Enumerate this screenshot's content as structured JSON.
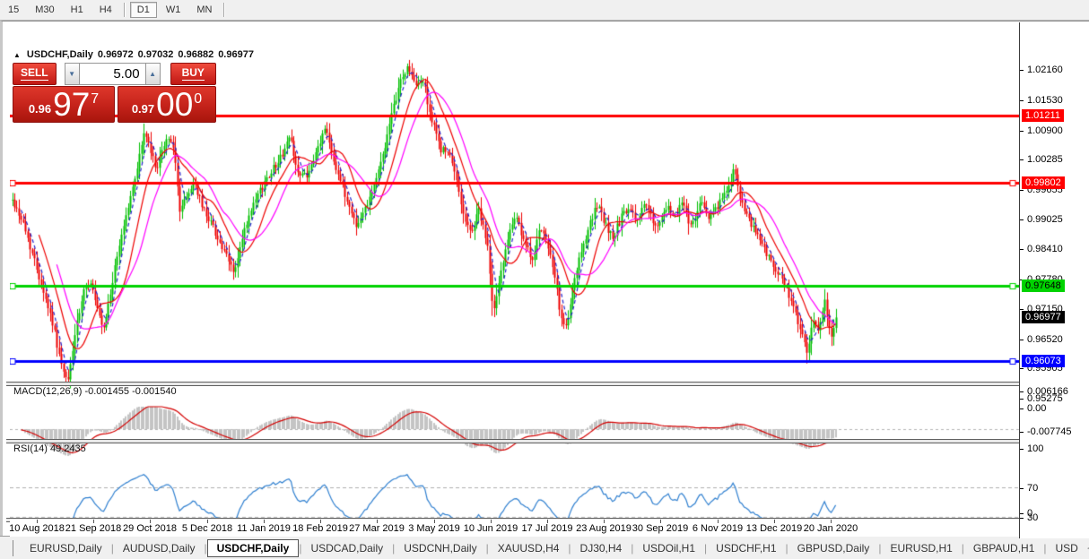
{
  "toolbar": {
    "timeframes": [
      {
        "label": "15",
        "active": false
      },
      {
        "label": "M30",
        "active": false
      },
      {
        "label": "H1",
        "active": false
      },
      {
        "label": "H4",
        "active": false,
        "sep_after": true
      },
      {
        "label": "D1",
        "active": true
      },
      {
        "label": "W1",
        "active": false
      },
      {
        "label": "MN",
        "active": false,
        "sep_after": true
      }
    ]
  },
  "chart_header": {
    "collapse_icon": "▲",
    "symbol": "USDCHF,Daily",
    "open": "0.96972",
    "high": "0.97032",
    "low": "0.96882",
    "close": "0.96977"
  },
  "trade_panel": {
    "sell_label": "SELL",
    "buy_label": "BUY",
    "volume": "5.00",
    "spin_down_icon": "▼",
    "spin_up_icon": "▲",
    "sell_price_small": "0.96",
    "sell_price_big": "97",
    "sell_price_sup": "7",
    "buy_price_small": "0.97",
    "buy_price_big": "00",
    "buy_price_sup": "0"
  },
  "macd_panel": {
    "label": "MACD(12,26,9) -0.001455 -0.001540",
    "axis": [
      "0.006166",
      "0.00",
      "-0.007745"
    ]
  },
  "rsi_panel": {
    "label": "RSI(14) 49.2435",
    "axis": [
      "100",
      "70",
      "30",
      "0"
    ]
  },
  "tab_bar": {
    "tabs": [
      {
        "label": "EURUSD,Daily",
        "active": false
      },
      {
        "label": "AUDUSD,Daily",
        "active": false
      },
      {
        "label": "USDCHF,Daily",
        "active": true
      },
      {
        "label": "USDCAD,Daily",
        "active": false
      },
      {
        "label": "USDCNH,Daily",
        "active": false
      },
      {
        "label": "XAUUSD,H4",
        "active": false
      },
      {
        "label": "DJ30,H4",
        "active": false
      },
      {
        "label": "USDOil,H1",
        "active": false
      },
      {
        "label": "USDCHF,H1",
        "active": false
      },
      {
        "label": "GBPUSD,Daily",
        "active": false
      },
      {
        "label": "EURUSD,H1",
        "active": false
      },
      {
        "label": "GBPAUD,H1",
        "active": false
      },
      {
        "label": "USD",
        "active": false
      }
    ],
    "scroll_left_icon": "◂",
    "scroll_right_icon": "▸"
  },
  "chart_data": {
    "type": "candlestick",
    "symbol": "USDCHF",
    "timeframe": "Daily",
    "quote": {
      "open": 0.96972,
      "high": 0.97032,
      "low": 0.96882,
      "close": 0.96977
    },
    "current_price": 0.96977,
    "colors": {
      "candle_up": "#00c000",
      "candle_down": "#ee0000",
      "ma_fast": "#2222cc",
      "ma_mid": "#ee0000",
      "ma_slow": "#ff00ff",
      "macd_histogram": "#c4c4c4",
      "macd_signal": "#d40000",
      "rsi_line": "#2e7fd0",
      "level_red": "#ff0000",
      "level_green": "#00d300",
      "level_blue": "#0000ff",
      "current_badge": "#000000"
    },
    "y_axis": {
      "min": 0.952,
      "max": 1.0262,
      "ticks": [
        1.0216,
        1.0153,
        1.009,
        1.00285,
        0.99655,
        0.99025,
        0.9841,
        0.9778,
        0.9715,
        0.9652,
        0.95905,
        0.95275
      ]
    },
    "horizontal_lines": [
      {
        "price": 1.01211,
        "label": "1.01211",
        "color": "#ff0000",
        "text": "#ffffff",
        "handles": false
      },
      {
        "price": 0.99802,
        "label": "0.99802",
        "color": "#ff0000",
        "text": "#ffffff",
        "handles": true
      },
      {
        "price": 0.97648,
        "label": "0.97648",
        "color": "#00d300",
        "text": "#000000",
        "handles": true
      },
      {
        "price": 0.96073,
        "label": "0.96073",
        "color": "#0000ff",
        "text": "#ffffff",
        "handles": true
      }
    ],
    "current_price_label": "0.96977",
    "candles": 370,
    "seed": 42,
    "price_path": [
      [
        10,
        0.9945
      ],
      [
        22,
        0.99
      ],
      [
        38,
        0.98
      ],
      [
        55,
        0.969
      ],
      [
        66,
        0.959
      ],
      [
        72,
        0.9558
      ],
      [
        80,
        0.966
      ],
      [
        90,
        0.975
      ],
      [
        97,
        0.9778
      ],
      [
        104,
        0.972
      ],
      [
        112,
        0.9665
      ],
      [
        120,
        0.975
      ],
      [
        132,
        0.987
      ],
      [
        145,
        0.997
      ],
      [
        158,
        1.009
      ],
      [
        165,
        1.004
      ],
      [
        172,
        1.001
      ],
      [
        181,
        1.0068
      ],
      [
        189,
        1.0072
      ],
      [
        197,
        0.9925
      ],
      [
        205,
        0.995
      ],
      [
        213,
        0.9985
      ],
      [
        222,
        0.993
      ],
      [
        232,
        0.9898
      ],
      [
        245,
        0.984
      ],
      [
        258,
        0.9792
      ],
      [
        270,
        0.9885
      ],
      [
        283,
        0.995
      ],
      [
        297,
        1.0
      ],
      [
        310,
        1.0035
      ],
      [
        320,
        1.0078
      ],
      [
        330,
        0.9992
      ],
      [
        342,
        1.0
      ],
      [
        352,
        1.0058
      ],
      [
        360,
        1.0098
      ],
      [
        370,
        1.002
      ],
      [
        383,
        0.9945
      ],
      [
        395,
        0.9888
      ],
      [
        407,
        0.9945
      ],
      [
        418,
        1.0
      ],
      [
        430,
        1.009
      ],
      [
        442,
        1.0188
      ],
      [
        452,
        1.0225
      ],
      [
        460,
        1.018
      ],
      [
        468,
        1.0198
      ],
      [
        478,
        1.011
      ],
      [
        488,
        1.0052
      ],
      [
        497,
        1.004
      ],
      [
        505,
        0.999
      ],
      [
        515,
        0.9902
      ],
      [
        522,
        0.9872
      ],
      [
        530,
        0.9928
      ],
      [
        540,
        0.985
      ],
      [
        547,
        0.9705
      ],
      [
        555,
        0.979
      ],
      [
        565,
        0.9888
      ],
      [
        572,
        0.9915
      ],
      [
        580,
        0.9856
      ],
      [
        590,
        0.9822
      ],
      [
        598,
        0.988
      ],
      [
        606,
        0.9858
      ],
      [
        614,
        0.979
      ],
      [
        620,
        0.9722
      ],
      [
        627,
        0.9668
      ],
      [
        636,
        0.976
      ],
      [
        645,
        0.984
      ],
      [
        655,
        0.9898
      ],
      [
        663,
        0.9934
      ],
      [
        672,
        0.989
      ],
      [
        680,
        0.9866
      ],
      [
        690,
        0.991
      ],
      [
        698,
        0.9924
      ],
      [
        706,
        0.99
      ],
      [
        715,
        0.9938
      ],
      [
        722,
        0.991
      ],
      [
        730,
        0.9882
      ],
      [
        740,
        0.9928
      ],
      [
        750,
        0.991
      ],
      [
        758,
        0.9946
      ],
      [
        765,
        0.9892
      ],
      [
        772,
        0.991
      ],
      [
        780,
        0.9944
      ],
      [
        788,
        0.9902
      ],
      [
        796,
        0.993
      ],
      [
        806,
        0.9958
      ],
      [
        815,
        1.0008
      ],
      [
        822,
        0.994
      ],
      [
        832,
        0.9896
      ],
      [
        842,
        0.987
      ],
      [
        852,
        0.983
      ],
      [
        862,
        0.9792
      ],
      [
        872,
        0.9766
      ],
      [
        880,
        0.9722
      ],
      [
        888,
        0.9682
      ],
      [
        897,
        0.9618
      ],
      [
        903,
        0.969
      ],
      [
        910,
        0.9672
      ],
      [
        916,
        0.9742
      ],
      [
        921,
        0.9672
      ],
      [
        925,
        0.9658
      ],
      [
        928,
        0.9698
      ]
    ],
    "moving_averages": [
      {
        "period": 5,
        "color": "#2222cc",
        "dash": true
      },
      {
        "period": 13,
        "color": "#ee0000",
        "dash": false
      },
      {
        "period": 21,
        "color": "#ff00ff",
        "dash": false
      }
    ],
    "macd": {
      "fast": 12,
      "slow": 26,
      "signal": 9,
      "value": -0.001455,
      "signal_value": -0.00154,
      "axis_max": 0.006166,
      "axis_min": -0.007745
    },
    "rsi": {
      "period": 14,
      "value": 49.2435,
      "levels": [
        70,
        30
      ],
      "axis": [
        100,
        70,
        30,
        0
      ]
    },
    "x_labels": [
      "10 Aug 2018",
      "21 Sep 2018",
      "29 Oct 2018",
      "5 Dec 2018",
      "11 Jan 2019",
      "18 Feb 2019",
      "27 Mar 2019",
      "3 May 2019",
      "10 Jun 2019",
      "17 Jul 2019",
      "23 Aug 2019",
      "30 Sep 2019",
      "6 Nov 2019",
      "13 Dec 2019",
      "20 Jan 2020"
    ]
  }
}
